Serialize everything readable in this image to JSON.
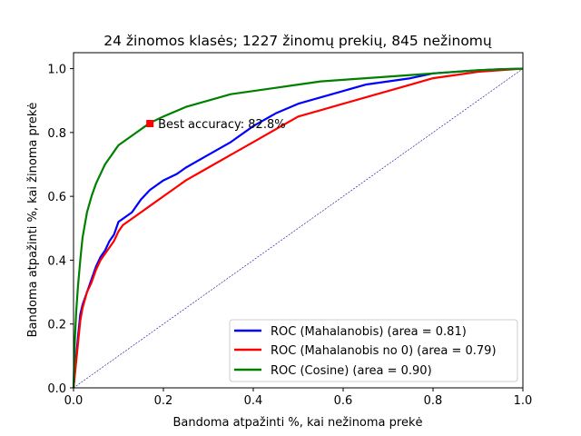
{
  "chart_data": {
    "type": "line",
    "title": "24 žinomos klasės; 1227 žinomų prekių, 845 nežinomų",
    "xlabel": "Bandoma atpažinti %, kai nežinoma prekė",
    "ylabel": "Bandoma atpažinti %, kai žinoma prekė",
    "xlim": [
      0,
      1
    ],
    "ylim": [
      0,
      1.05
    ],
    "x_ticks": [
      0.0,
      0.2,
      0.4,
      0.6,
      0.8,
      1.0
    ],
    "x_tick_labels": [
      "0.0",
      "0.2",
      "0.4",
      "0.6",
      "0.8",
      "1.0"
    ],
    "y_ticks": [
      0.0,
      0.2,
      0.4,
      0.6,
      0.8,
      1.0
    ],
    "y_tick_labels": [
      "0.0",
      "0.2",
      "0.4",
      "0.6",
      "0.8",
      "1.0"
    ],
    "grid": false,
    "legend_position": "lower-right",
    "series": [
      {
        "name": "ROC (Mahalanobis) (area = 0.81)",
        "color": "#0000ff",
        "x": [
          0,
          0.005,
          0.01,
          0.015,
          0.02,
          0.03,
          0.04,
          0.05,
          0.06,
          0.07,
          0.08,
          0.09,
          0.1,
          0.11,
          0.12,
          0.13,
          0.14,
          0.15,
          0.17,
          0.2,
          0.23,
          0.25,
          0.3,
          0.35,
          0.4,
          0.45,
          0.5,
          0.55,
          0.6,
          0.65,
          0.7,
          0.75,
          0.8,
          0.85,
          0.9,
          0.95,
          1.0
        ],
        "y": [
          0,
          0.08,
          0.16,
          0.23,
          0.26,
          0.3,
          0.34,
          0.38,
          0.41,
          0.43,
          0.46,
          0.48,
          0.52,
          0.53,
          0.54,
          0.55,
          0.57,
          0.59,
          0.62,
          0.65,
          0.67,
          0.69,
          0.73,
          0.77,
          0.82,
          0.86,
          0.89,
          0.91,
          0.93,
          0.95,
          0.96,
          0.97,
          0.985,
          0.99,
          0.995,
          0.998,
          1.0
        ]
      },
      {
        "name": "ROC (Mahalanobis no 0) (area = 0.79)",
        "color": "#ff0000",
        "x": [
          0,
          0.005,
          0.01,
          0.015,
          0.02,
          0.03,
          0.04,
          0.05,
          0.06,
          0.07,
          0.08,
          0.09,
          0.1,
          0.11,
          0.12,
          0.13,
          0.14,
          0.15,
          0.17,
          0.2,
          0.23,
          0.25,
          0.3,
          0.35,
          0.4,
          0.45,
          0.5,
          0.55,
          0.6,
          0.65,
          0.7,
          0.75,
          0.8,
          0.85,
          0.9,
          0.95,
          1.0
        ],
        "y": [
          0,
          0.07,
          0.14,
          0.21,
          0.25,
          0.3,
          0.33,
          0.37,
          0.4,
          0.42,
          0.44,
          0.46,
          0.49,
          0.51,
          0.52,
          0.53,
          0.54,
          0.55,
          0.57,
          0.6,
          0.63,
          0.65,
          0.69,
          0.73,
          0.77,
          0.81,
          0.85,
          0.87,
          0.89,
          0.91,
          0.93,
          0.95,
          0.97,
          0.98,
          0.99,
          0.995,
          1.0
        ]
      },
      {
        "name": "ROC (Cosine) (area = 0.90)",
        "color": "#008000",
        "x": [
          0,
          0.003,
          0.006,
          0.01,
          0.015,
          0.02,
          0.03,
          0.04,
          0.05,
          0.06,
          0.07,
          0.08,
          0.09,
          0.1,
          0.12,
          0.14,
          0.16,
          0.17,
          0.2,
          0.25,
          0.3,
          0.35,
          0.4,
          0.45,
          0.5,
          0.55,
          0.6,
          0.65,
          0.7,
          0.75,
          0.8,
          0.85,
          0.9,
          0.95,
          1.0
        ],
        "y": [
          0,
          0.15,
          0.24,
          0.32,
          0.4,
          0.47,
          0.55,
          0.6,
          0.64,
          0.67,
          0.7,
          0.72,
          0.74,
          0.76,
          0.78,
          0.8,
          0.82,
          0.83,
          0.85,
          0.88,
          0.9,
          0.92,
          0.93,
          0.94,
          0.95,
          0.96,
          0.965,
          0.97,
          0.975,
          0.98,
          0.985,
          0.99,
          0.995,
          0.998,
          1.0
        ]
      },
      {
        "name": "",
        "color": "#0000aa",
        "dashed": true,
        "x": [
          0,
          1
        ],
        "y": [
          0,
          1
        ]
      }
    ],
    "annotation": {
      "text": "Best accuracy: 82.8%",
      "x": 0.17,
      "y": 0.828,
      "marker_color": "#ff0000"
    }
  }
}
